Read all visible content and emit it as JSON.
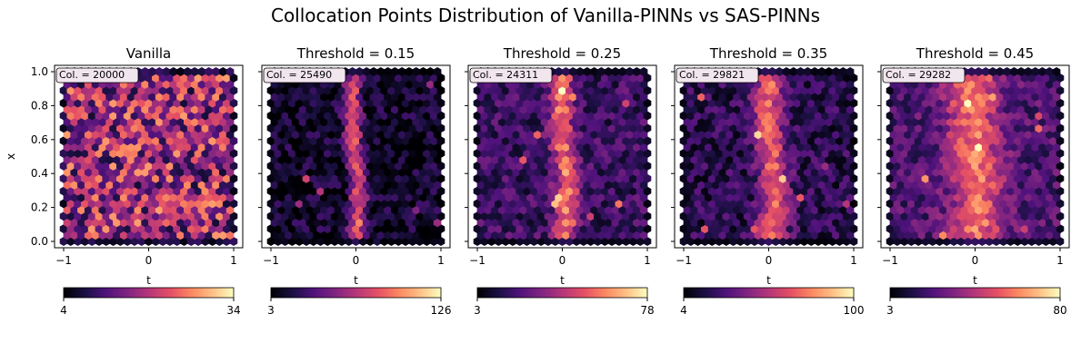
{
  "figure": {
    "title": "Collocation Points Distribution of Vanilla-PINNs vs SAS-PINNs"
  },
  "chart_data": [
    {
      "type": "heatmap",
      "subtype": "hexbin",
      "title": "Vanilla",
      "xlabel": "t",
      "ylabel": "x",
      "xlim": [
        -1,
        1
      ],
      "ylim": [
        0,
        1
      ],
      "x_ticks": [
        "−1",
        "0",
        "1"
      ],
      "y_ticks": [
        "0.0",
        "0.2",
        "0.4",
        "0.6",
        "0.8",
        "1.0"
      ],
      "annotation": "Col. = 20000",
      "colorbar": {
        "min": "4",
        "max": "34",
        "colormap": "magma"
      },
      "density": {
        "profile": "uniform"
      }
    },
    {
      "type": "heatmap",
      "subtype": "hexbin",
      "title": "Threshold = 0.15",
      "xlabel": "t",
      "ylabel": "",
      "xlim": [
        -1,
        1
      ],
      "ylim": [
        0,
        1
      ],
      "x_ticks": [
        "−1",
        "0",
        "1"
      ],
      "y_ticks": [],
      "annotation": "Col. = 25490",
      "colorbar": {
        "min": "3",
        "max": "126",
        "colormap": "magma"
      },
      "density": {
        "profile": "band",
        "center": 0.0,
        "width": 0.1,
        "peak": 0.55,
        "background": 0.08
      }
    },
    {
      "type": "heatmap",
      "subtype": "hexbin",
      "title": "Threshold = 0.25",
      "xlabel": "t",
      "ylabel": "",
      "xlim": [
        -1,
        1
      ],
      "ylim": [
        0,
        1
      ],
      "x_ticks": [
        "−1",
        "0",
        "1"
      ],
      "y_ticks": [],
      "annotation": "Col. = 24311",
      "colorbar": {
        "min": "3",
        "max": "78",
        "colormap": "magma"
      },
      "density": {
        "profile": "band",
        "center": 0.02,
        "width": 0.14,
        "peak": 0.5,
        "background": 0.2
      }
    },
    {
      "type": "heatmap",
      "subtype": "hexbin",
      "title": "Threshold = 0.35",
      "xlabel": "t",
      "ylabel": "",
      "xlim": [
        -1,
        1
      ],
      "ylim": [
        0,
        1
      ],
      "x_ticks": [
        "−1",
        "0",
        "1"
      ],
      "y_ticks": [],
      "annotation": "Col. = 29821",
      "colorbar": {
        "min": "4",
        "max": "100",
        "colormap": "magma"
      },
      "density": {
        "profile": "band",
        "center": 0.03,
        "width": 0.17,
        "peak": 0.5,
        "background": 0.16
      }
    },
    {
      "type": "heatmap",
      "subtype": "hexbin",
      "title": "Threshold = 0.45",
      "xlabel": "t",
      "ylabel": "",
      "xlim": [
        -1,
        1
      ],
      "ylim": [
        0,
        1
      ],
      "x_ticks": [
        "−1",
        "0",
        "1"
      ],
      "y_ticks": [],
      "annotation": "Col. = 29282",
      "colorbar": {
        "min": "3",
        "max": "80",
        "colormap": "magma"
      },
      "density": {
        "profile": "band",
        "center": 0.0,
        "width": 0.3,
        "peak": 0.45,
        "background": 0.25
      }
    }
  ]
}
